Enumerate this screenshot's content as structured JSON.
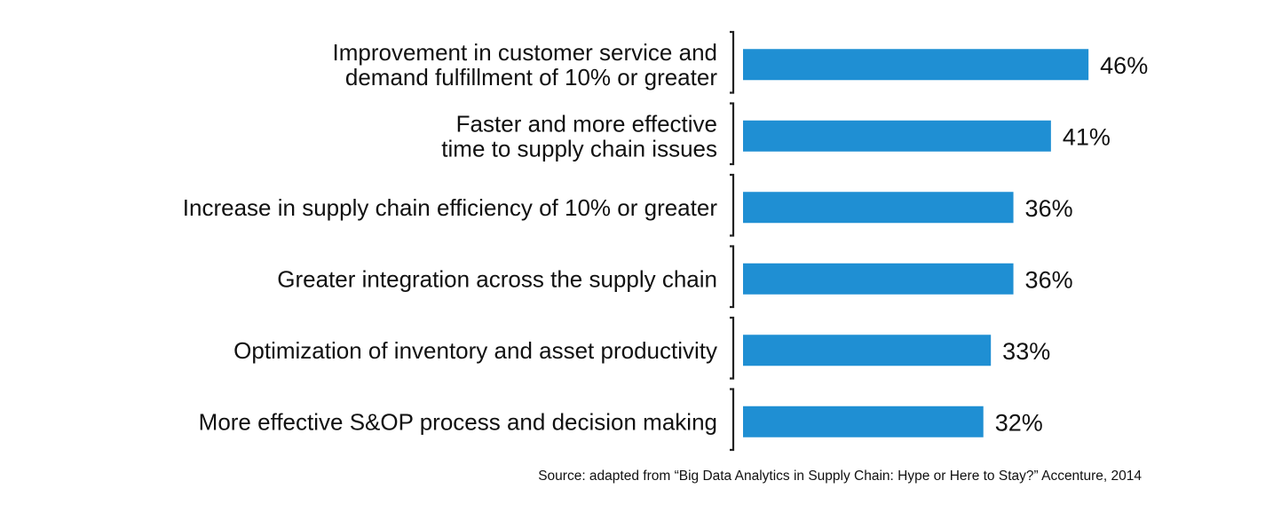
{
  "chart_data": {
    "type": "bar",
    "orientation": "horizontal",
    "categories": [
      [
        "Improvement in customer service and",
        "demand fulfillment of 10% or greater"
      ],
      [
        "Faster and more effective",
        "time to supply chain issues"
      ],
      [
        "Increase in supply chain efficiency of 10% or greater"
      ],
      [
        "Greater integration across the supply chain"
      ],
      [
        "Optimization of inventory and asset productivity"
      ],
      [
        "More effective S&OP process and decision making"
      ]
    ],
    "values": [
      46,
      41,
      36,
      36,
      33,
      32
    ],
    "value_labels": [
      "46%",
      "41%",
      "36%",
      "36%",
      "33%",
      "32%"
    ],
    "title": "",
    "xlabel": "",
    "ylabel": "",
    "xlim": [
      0,
      46
    ],
    "grid": false,
    "legend": "none",
    "bar_color": "#1f8fd3"
  },
  "source": "Source: adapted from “Big Data Analytics in Supply Chain: Hype or Here to Stay?” Accenture, 2014"
}
